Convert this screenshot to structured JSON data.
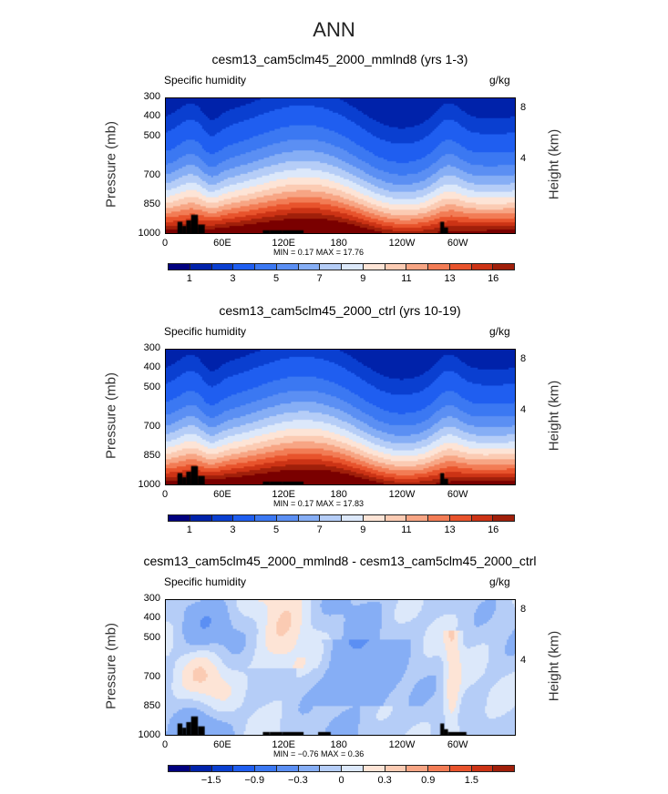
{
  "title": "ANN",
  "chart_data": [
    {
      "type": "heatmap",
      "title": "cesm13_cam5clm45_2000_mmlnd8 (yrs 1-3)",
      "left_label": "Specific humidity",
      "units": "g/kg",
      "ylabel": "Pressure (mb)",
      "ylabel_right": "Height (km)",
      "yticks": [
        "300",
        "400",
        "500",
        "700",
        "850",
        "1000"
      ],
      "yticks_right": [
        "8",
        "4"
      ],
      "xticks": [
        "0",
        "60E",
        "120E",
        "180",
        "120W",
        "60W"
      ],
      "ylim": [
        1000,
        300
      ],
      "xlim": [
        0,
        360
      ],
      "stats": "MIN =    0.17   MAX =    17.76",
      "min": 0.17,
      "max": 17.76,
      "colorbar_labels": [
        "1",
        "3",
        "5",
        "7",
        "9",
        "11",
        "13",
        "16"
      ],
      "kind": "abs"
    },
    {
      "type": "heatmap",
      "title": "cesm13_cam5clm45_2000_ctrl (yrs 10-19)",
      "left_label": "Specific humidity",
      "units": "g/kg",
      "ylabel": "Pressure (mb)",
      "ylabel_right": "Height (km)",
      "yticks": [
        "300",
        "400",
        "500",
        "700",
        "850",
        "1000"
      ],
      "yticks_right": [
        "8",
        "4"
      ],
      "xticks": [
        "0",
        "60E",
        "120E",
        "180",
        "120W",
        "60W"
      ],
      "ylim": [
        1000,
        300
      ],
      "xlim": [
        0,
        360
      ],
      "stats": "MIN =    0.17   MAX =    17.83",
      "min": 0.17,
      "max": 17.83,
      "colorbar_labels": [
        "1",
        "3",
        "5",
        "7",
        "9",
        "11",
        "13",
        "16"
      ],
      "kind": "abs"
    },
    {
      "type": "heatmap",
      "title": "cesm13_cam5clm45_2000_mmlnd8 - cesm13_cam5clm45_2000_ctrl",
      "left_label": "Specific humidity",
      "units": "g/kg",
      "ylabel": "Pressure (mb)",
      "ylabel_right": "Height (km)",
      "yticks": [
        "300",
        "400",
        "500",
        "700",
        "850",
        "1000"
      ],
      "yticks_right": [
        "8",
        "4"
      ],
      "xticks": [
        "0",
        "60E",
        "120E",
        "180",
        "120W",
        "60W"
      ],
      "ylim": [
        1000,
        300
      ],
      "xlim": [
        0,
        360
      ],
      "stats": "MIN =   −0.76   MAX =    0.36",
      "min": -0.76,
      "max": 0.36,
      "colorbar_labels": [
        "−1.5",
        "−0.9",
        "−0.3",
        "0",
        "0.3",
        "0.9",
        "1.5"
      ],
      "kind": "diff"
    }
  ],
  "colors": [
    "#00007f",
    "#0022aa",
    "#0a3fd0",
    "#1f5ef0",
    "#3b78f2",
    "#5b8ff3",
    "#86aef5",
    "#b5cdf7",
    "#dce8fa",
    "#fde4d6",
    "#fbcbb3",
    "#f7a584",
    "#f27c55",
    "#e8532c",
    "#cc3315",
    "#a01f0a",
    "#7a0000"
  ]
}
